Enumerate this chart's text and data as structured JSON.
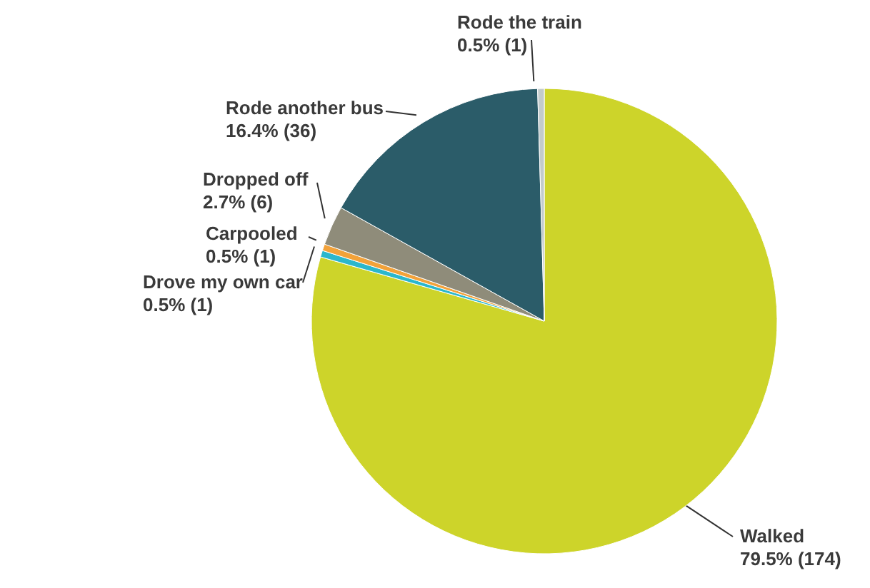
{
  "chart_data": {
    "type": "pie",
    "categories": [
      "Walked",
      "Drove my own car",
      "Carpooled",
      "Dropped off",
      "Rode another bus",
      "Rode the train"
    ],
    "values": [
      174,
      1,
      1,
      6,
      36,
      1
    ],
    "value_labels": [
      "79.5% (174)",
      "0.5% (1)",
      "0.5% (1)",
      "2.7% (6)",
      "16.4% (36)",
      "0.5% (1)"
    ],
    "colors": [
      "#cdd42a",
      "#2bb7cc",
      "#f2a23a",
      "#8f8c7a",
      "#2b5c69",
      "#c3cbcc"
    ],
    "legend": false
  }
}
